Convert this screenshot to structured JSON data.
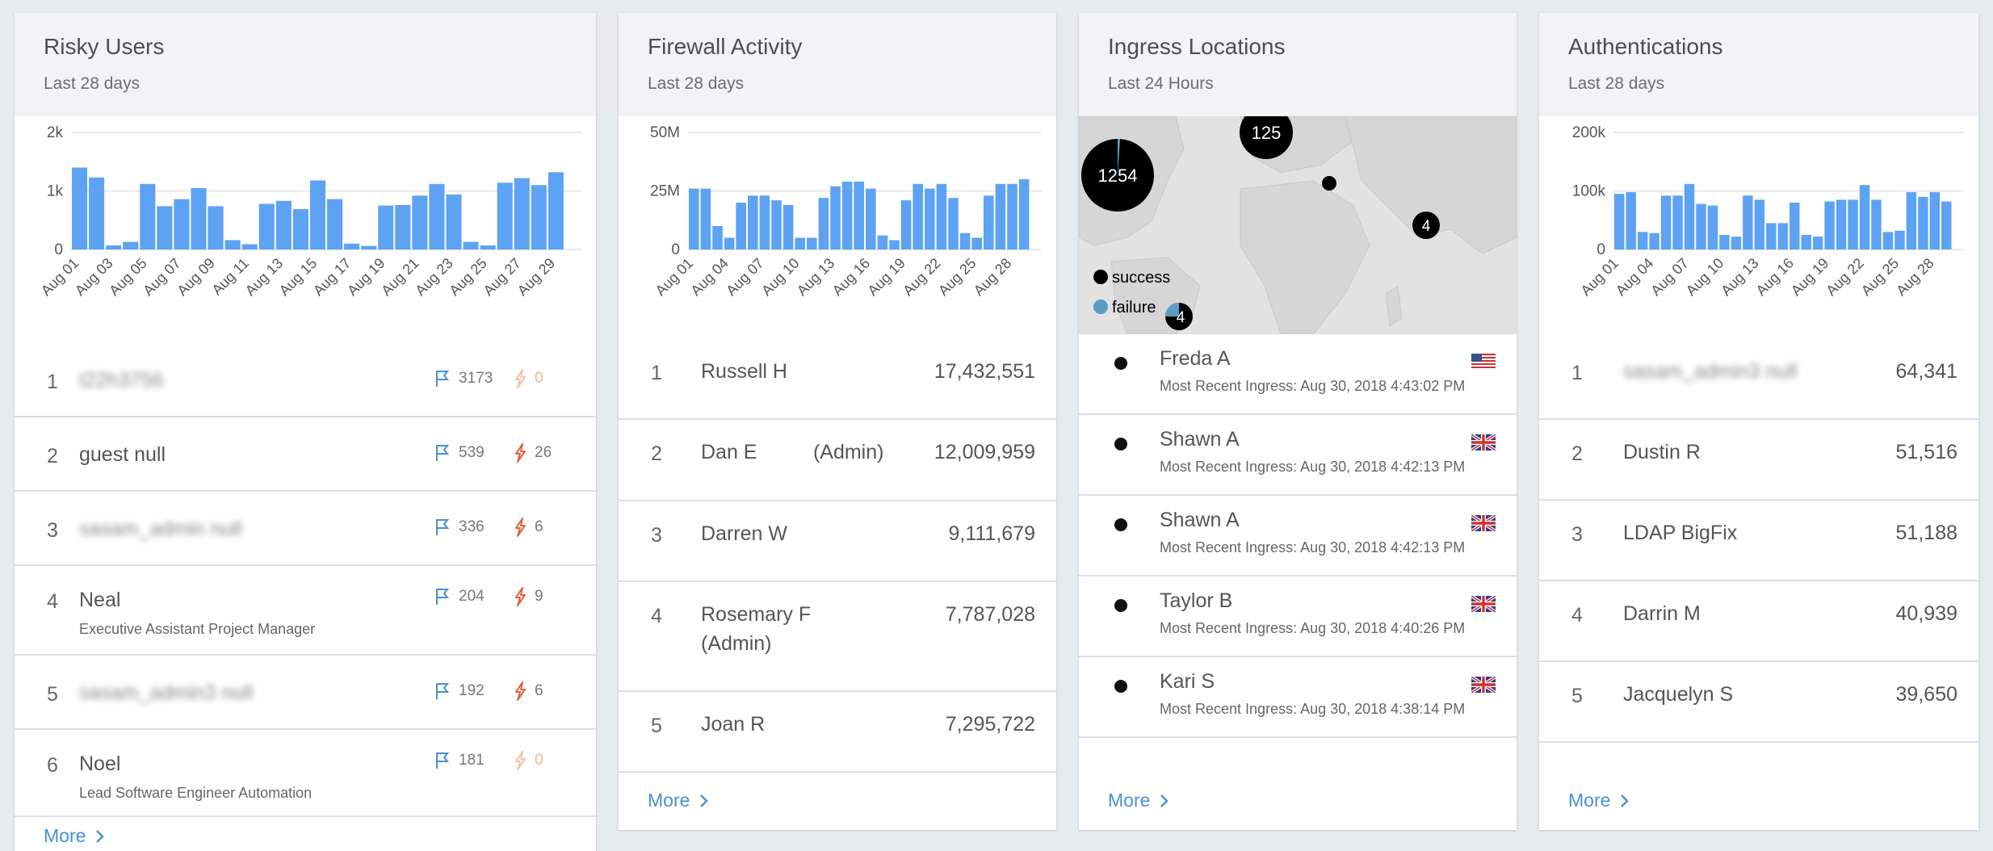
{
  "risky_users": {
    "title": "Risky Users",
    "subtitle": "Last 28 days",
    "chart_data": {
      "type": "bar",
      "categories": [
        "Aug 01",
        "Aug 02",
        "Aug 03",
        "Aug 04",
        "Aug 05",
        "Aug 06",
        "Aug 07",
        "Aug 08",
        "Aug 09",
        "Aug 10",
        "Aug 11",
        "Aug 12",
        "Aug 13",
        "Aug 14",
        "Aug 15",
        "Aug 16",
        "Aug 17",
        "Aug 18",
        "Aug 19",
        "Aug 20",
        "Aug 21",
        "Aug 22",
        "Aug 23",
        "Aug 24",
        "Aug 25",
        "Aug 26",
        "Aug 27",
        "Aug 28",
        "Aug 29",
        "Aug 30"
      ],
      "values": [
        1400,
        1230,
        70,
        130,
        1120,
        740,
        860,
        1050,
        740,
        160,
        90,
        780,
        830,
        690,
        1180,
        860,
        100,
        60,
        750,
        760,
        920,
        1120,
        940,
        130,
        70,
        1140,
        1220,
        1100,
        1320,
        0
      ],
      "tick_labels": [
        "Aug 01",
        "Aug 03",
        "Aug 05",
        "Aug 07",
        "Aug 09",
        "Aug 11",
        "Aug 13",
        "Aug 15",
        "Aug 17",
        "Aug 19",
        "Aug 21",
        "Aug 23",
        "Aug 25",
        "Aug 27",
        "Aug 29"
      ],
      "y_ticks": [
        "2k",
        "1k",
        "0"
      ],
      "ylim": [
        0,
        2000
      ]
    },
    "rows": [
      {
        "rank": "1",
        "name": "t22h3756",
        "sub": "",
        "flags": "3173",
        "alerts": "0",
        "blurred": true,
        "alerts_dim": true
      },
      {
        "rank": "2",
        "name": "guest null",
        "sub": "",
        "flags": "539",
        "alerts": "26",
        "blurred": false,
        "alerts_dim": false
      },
      {
        "rank": "3",
        "name": "sasam_admin null",
        "sub": "",
        "flags": "336",
        "alerts": "6",
        "blurred": true,
        "alerts_dim": false
      },
      {
        "rank": "4",
        "name": "Neal",
        "sub": "Executive Assistant Project Manager",
        "flags": "204",
        "alerts": "9",
        "blurred": false,
        "alerts_dim": false
      },
      {
        "rank": "5",
        "name": "sasam_admin3 null",
        "sub": "",
        "flags": "192",
        "alerts": "6",
        "blurred": true,
        "alerts_dim": false
      },
      {
        "rank": "6",
        "name": "Noel",
        "sub": "Lead Software Engineer Automation",
        "flags": "181",
        "alerts": "0",
        "blurred": false,
        "alerts_dim": true
      }
    ],
    "more": "More"
  },
  "firewall": {
    "title": "Firewall Activity",
    "subtitle": "Last 28 days",
    "chart_data": {
      "type": "bar",
      "categories": [
        "Aug 01",
        "Aug 02",
        "Aug 03",
        "Aug 04",
        "Aug 05",
        "Aug 06",
        "Aug 07",
        "Aug 08",
        "Aug 09",
        "Aug 10",
        "Aug 11",
        "Aug 12",
        "Aug 13",
        "Aug 14",
        "Aug 15",
        "Aug 16",
        "Aug 17",
        "Aug 18",
        "Aug 19",
        "Aug 20",
        "Aug 21",
        "Aug 22",
        "Aug 23",
        "Aug 24",
        "Aug 25",
        "Aug 26",
        "Aug 27",
        "Aug 28",
        "Aug 29",
        "Aug 30"
      ],
      "values": [
        26,
        26,
        10,
        5,
        20,
        23,
        23,
        21,
        19,
        5,
        5,
        22,
        27,
        29,
        29,
        26,
        6,
        4,
        21,
        28,
        26,
        28,
        22,
        7,
        5,
        23,
        28,
        28,
        30,
        0
      ],
      "tick_labels": [
        "Aug 01",
        "Aug 04",
        "Aug 07",
        "Aug 10",
        "Aug 13",
        "Aug 16",
        "Aug 19",
        "Aug 22",
        "Aug 25",
        "Aug 28"
      ],
      "y_ticks": [
        "50M",
        "25M",
        "0"
      ],
      "ylim": [
        0,
        50
      ]
    },
    "rows": [
      {
        "rank": "1",
        "name": "Russell H",
        "value": "17,432,551"
      },
      {
        "rank": "2",
        "name": "Dan E          (Admin)",
        "value": "12,009,959"
      },
      {
        "rank": "3",
        "name": "Darren W",
        "value": "9,111,679"
      },
      {
        "rank": "4",
        "name": "Rosemary F",
        "name2": "(Admin)",
        "value": "7,787,028"
      },
      {
        "rank": "5",
        "name": "Joan R",
        "value": "7,295,722"
      }
    ],
    "more": "More"
  },
  "ingress": {
    "title": "Ingress Locations",
    "subtitle": "Last 24 Hours",
    "map": {
      "clusters": [
        "1254",
        "125",
        "4",
        "4"
      ],
      "legend_success": "success",
      "legend_failure": "failure",
      "success_color": "#000000",
      "failure_color": "#5b9bc4"
    },
    "rows": [
      {
        "name": "Freda A",
        "sub": "Most Recent Ingress: Aug 30, 2018 4:43:02 PM",
        "flag": "us"
      },
      {
        "name": "Shawn A",
        "sub": "Most Recent Ingress: Aug 30, 2018 4:42:13 PM",
        "flag": "uk"
      },
      {
        "name": "Shawn A",
        "sub": "Most Recent Ingress: Aug 30, 2018 4:42:13 PM",
        "flag": "uk"
      },
      {
        "name": "Taylor B",
        "sub": "Most Recent Ingress: Aug 30, 2018 4:40:26 PM",
        "flag": "uk"
      },
      {
        "name": "Kari S",
        "sub": "Most Recent Ingress: Aug 30, 2018 4:38:14 PM",
        "flag": "uk"
      }
    ],
    "more": "More"
  },
  "auth": {
    "title": "Authentications",
    "subtitle": "Last 28 days",
    "chart_data": {
      "type": "bar",
      "categories": [
        "Aug 01",
        "Aug 02",
        "Aug 03",
        "Aug 04",
        "Aug 05",
        "Aug 06",
        "Aug 07",
        "Aug 08",
        "Aug 09",
        "Aug 10",
        "Aug 11",
        "Aug 12",
        "Aug 13",
        "Aug 14",
        "Aug 15",
        "Aug 16",
        "Aug 17",
        "Aug 18",
        "Aug 19",
        "Aug 20",
        "Aug 21",
        "Aug 22",
        "Aug 23",
        "Aug 24",
        "Aug 25",
        "Aug 26",
        "Aug 27",
        "Aug 28",
        "Aug 29",
        "Aug 30"
      ],
      "values": [
        95,
        98,
        30,
        28,
        92,
        92,
        112,
        78,
        75,
        25,
        22,
        92,
        85,
        45,
        45,
        80,
        25,
        22,
        82,
        85,
        85,
        110,
        85,
        30,
        32,
        98,
        90,
        98,
        82,
        0
      ],
      "tick_labels": [
        "Aug 01",
        "Aug 04",
        "Aug 07",
        "Aug 10",
        "Aug 13",
        "Aug 16",
        "Aug 19",
        "Aug 22",
        "Aug 25",
        "Aug 28"
      ],
      "y_ticks": [
        "200k",
        "100k",
        "0"
      ],
      "ylim": [
        0,
        200
      ]
    },
    "rows": [
      {
        "rank": "1",
        "name": "sasam_admin3 null",
        "value": "64,341",
        "blurred": true
      },
      {
        "rank": "2",
        "name": "Dustin R",
        "value": "51,516",
        "blurred": false
      },
      {
        "rank": "3",
        "name": "LDAP BigFix",
        "value": "51,188",
        "blurred": false
      },
      {
        "rank": "4",
        "name": "Darrin M",
        "value": "40,939",
        "blurred": false
      },
      {
        "rank": "5",
        "name": "Jacquelyn S",
        "value": "39,650",
        "blurred": false
      }
    ],
    "more": "More"
  }
}
